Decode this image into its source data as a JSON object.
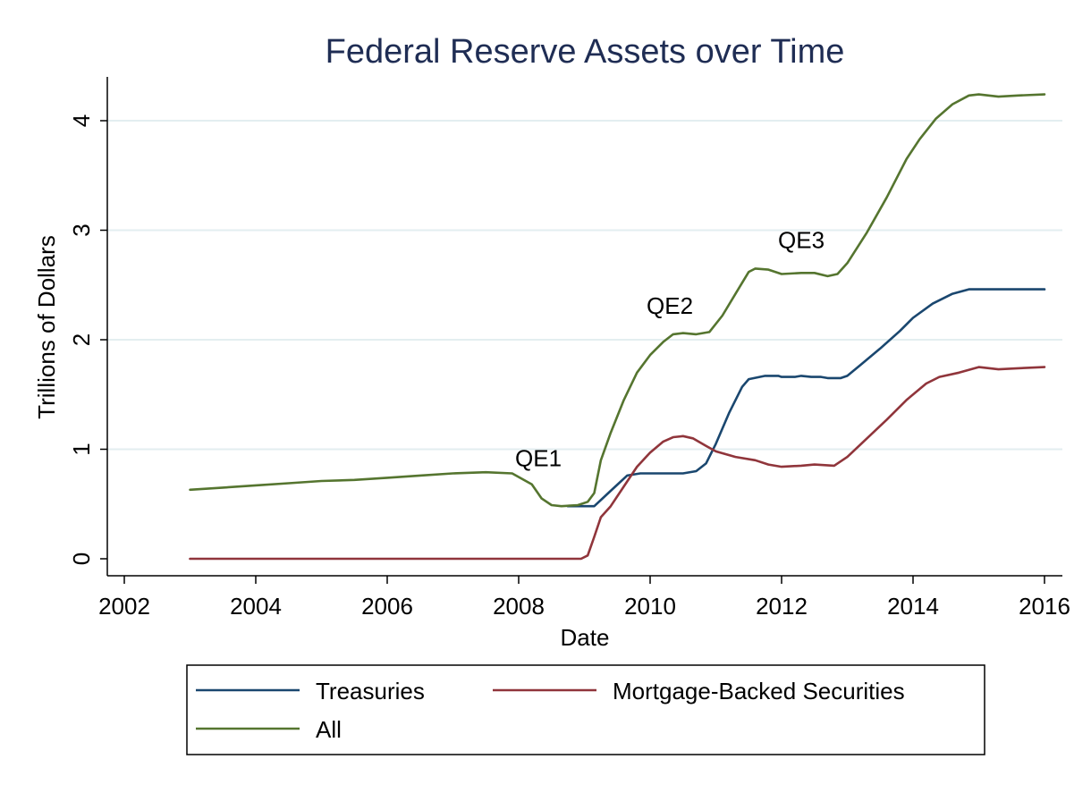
{
  "chart_data": {
    "type": "line",
    "title": "Federal Reserve Assets over Time",
    "xlabel": "Date",
    "ylabel": "Trillions of Dollars",
    "xlim": [
      2002,
      2016
    ],
    "ylim": [
      0,
      4.4
    ],
    "x_ticks": [
      2002,
      2004,
      2006,
      2008,
      2010,
      2012,
      2014,
      2016
    ],
    "x_tick_labels": [
      "2002",
      "2004",
      "2006",
      "2008",
      "2010",
      "2012",
      "2014",
      "2016"
    ],
    "y_ticks": [
      0,
      1,
      2,
      3,
      4
    ],
    "y_tick_labels": [
      "0",
      "1",
      "2",
      "3",
      "4"
    ],
    "grid": true,
    "legend_position": "bottom",
    "series": [
      {
        "name": "Treasuries",
        "color": "#1a476f",
        "points": [
          [
            2008.75,
            0.48
          ],
          [
            2009.15,
            0.48
          ],
          [
            2009.4,
            0.62
          ],
          [
            2009.65,
            0.76
          ],
          [
            2009.85,
            0.78
          ],
          [
            2010.0,
            0.78
          ],
          [
            2010.5,
            0.78
          ],
          [
            2010.7,
            0.8
          ],
          [
            2010.85,
            0.87
          ],
          [
            2011.0,
            1.05
          ],
          [
            2011.2,
            1.33
          ],
          [
            2011.4,
            1.57
          ],
          [
            2011.5,
            1.64
          ],
          [
            2011.75,
            1.67
          ],
          [
            2011.95,
            1.67
          ],
          [
            2012.0,
            1.66
          ],
          [
            2012.2,
            1.66
          ],
          [
            2012.3,
            1.67
          ],
          [
            2012.45,
            1.66
          ],
          [
            2012.6,
            1.66
          ],
          [
            2012.7,
            1.65
          ],
          [
            2012.9,
            1.65
          ],
          [
            2013.0,
            1.67
          ],
          [
            2013.2,
            1.77
          ],
          [
            2013.5,
            1.92
          ],
          [
            2013.8,
            2.08
          ],
          [
            2014.0,
            2.2
          ],
          [
            2014.3,
            2.33
          ],
          [
            2014.6,
            2.42
          ],
          [
            2014.85,
            2.46
          ],
          [
            2015.0,
            2.46
          ],
          [
            2015.5,
            2.46
          ],
          [
            2016.0,
            2.46
          ]
        ]
      },
      {
        "name": "Mortgage-Backed Securities",
        "color": "#90353b",
        "points": [
          [
            2003.0,
            0.0
          ],
          [
            2008.95,
            0.0
          ],
          [
            2009.05,
            0.03
          ],
          [
            2009.15,
            0.2
          ],
          [
            2009.25,
            0.38
          ],
          [
            2009.4,
            0.48
          ],
          [
            2009.6,
            0.66
          ],
          [
            2009.8,
            0.84
          ],
          [
            2010.0,
            0.97
          ],
          [
            2010.2,
            1.07
          ],
          [
            2010.35,
            1.11
          ],
          [
            2010.5,
            1.12
          ],
          [
            2010.65,
            1.1
          ],
          [
            2010.85,
            1.03
          ],
          [
            2011.0,
            0.98
          ],
          [
            2011.3,
            0.93
          ],
          [
            2011.6,
            0.9
          ],
          [
            2011.8,
            0.86
          ],
          [
            2012.0,
            0.84
          ],
          [
            2012.3,
            0.85
          ],
          [
            2012.5,
            0.86
          ],
          [
            2012.8,
            0.85
          ],
          [
            2013.0,
            0.93
          ],
          [
            2013.3,
            1.1
          ],
          [
            2013.6,
            1.27
          ],
          [
            2013.9,
            1.45
          ],
          [
            2014.2,
            1.6
          ],
          [
            2014.4,
            1.66
          ],
          [
            2014.7,
            1.7
          ],
          [
            2015.0,
            1.75
          ],
          [
            2015.3,
            1.73
          ],
          [
            2015.6,
            1.74
          ],
          [
            2016.0,
            1.75
          ]
        ]
      },
      {
        "name": "All",
        "color": "#55752f",
        "points": [
          [
            2003.0,
            0.63
          ],
          [
            2003.5,
            0.65
          ],
          [
            2004.0,
            0.67
          ],
          [
            2004.5,
            0.69
          ],
          [
            2005.0,
            0.71
          ],
          [
            2005.5,
            0.72
          ],
          [
            2006.0,
            0.74
          ],
          [
            2006.5,
            0.76
          ],
          [
            2007.0,
            0.78
          ],
          [
            2007.5,
            0.79
          ],
          [
            2007.9,
            0.78
          ],
          [
            2008.05,
            0.73
          ],
          [
            2008.2,
            0.68
          ],
          [
            2008.35,
            0.55
          ],
          [
            2008.5,
            0.49
          ],
          [
            2008.65,
            0.48
          ],
          [
            2008.9,
            0.49
          ],
          [
            2009.05,
            0.52
          ],
          [
            2009.15,
            0.6
          ],
          [
            2009.25,
            0.9
          ],
          [
            2009.4,
            1.15
          ],
          [
            2009.6,
            1.45
          ],
          [
            2009.8,
            1.7
          ],
          [
            2010.0,
            1.86
          ],
          [
            2010.2,
            1.98
          ],
          [
            2010.35,
            2.05
          ],
          [
            2010.5,
            2.06
          ],
          [
            2010.7,
            2.05
          ],
          [
            2010.9,
            2.07
          ],
          [
            2011.1,
            2.22
          ],
          [
            2011.3,
            2.42
          ],
          [
            2011.5,
            2.62
          ],
          [
            2011.6,
            2.65
          ],
          [
            2011.8,
            2.64
          ],
          [
            2012.0,
            2.6
          ],
          [
            2012.3,
            2.61
          ],
          [
            2012.5,
            2.61
          ],
          [
            2012.7,
            2.58
          ],
          [
            2012.85,
            2.6
          ],
          [
            2013.0,
            2.7
          ],
          [
            2013.3,
            2.98
          ],
          [
            2013.6,
            3.3
          ],
          [
            2013.9,
            3.65
          ],
          [
            2014.1,
            3.83
          ],
          [
            2014.35,
            4.02
          ],
          [
            2014.6,
            4.15
          ],
          [
            2014.85,
            4.23
          ],
          [
            2015.0,
            4.24
          ],
          [
            2015.3,
            4.22
          ],
          [
            2015.6,
            4.23
          ],
          [
            2016.0,
            4.24
          ]
        ]
      }
    ],
    "annotations": [
      {
        "text": "QE1",
        "x": 2008.3,
        "y": 0.92
      },
      {
        "text": "QE2",
        "x": 2010.3,
        "y": 2.31
      },
      {
        "text": "QE3",
        "x": 2012.3,
        "y": 2.91
      }
    ]
  }
}
